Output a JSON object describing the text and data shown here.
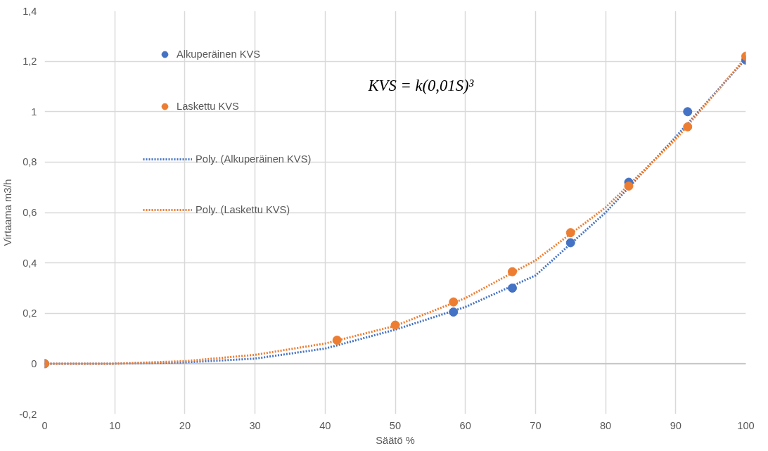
{
  "chart_data": {
    "type": "scatter",
    "xlabel": "Säätö %",
    "ylabel": "Virtaama m3/h",
    "annotations": [
      "KVS = k(0,01S)³"
    ],
    "xlim": [
      0,
      100
    ],
    "xticks": [
      0,
      10,
      20,
      30,
      40,
      50,
      60,
      70,
      80,
      90,
      100
    ],
    "ylim": [
      -0.2,
      1.4
    ],
    "yticks": [
      {
        "value": -0.2,
        "label": "-0,2"
      },
      0,
      {
        "value": 0.2,
        "label": "0,2"
      },
      {
        "value": 0.4,
        "label": "0,4"
      },
      {
        "value": 0.6,
        "label": "0,6"
      },
      {
        "value": 0.8,
        "label": "0,8"
      },
      1,
      {
        "value": 1.2,
        "label": "1,2"
      },
      {
        "value": 1.4,
        "label": "1,4"
      }
    ],
    "grid": true,
    "legend": "top left",
    "marker": "circle",
    "series": [
      {
        "name": "Alkuperäinen KVS",
        "color": "#4472c4",
        "x": [
          0,
          50,
          58.3,
          66.7,
          75,
          83.3,
          91.7,
          100
        ],
        "values": [
          0,
          null,
          0.205,
          0.3,
          0.48,
          0.72,
          1.0,
          1.205
        ]
      },
      {
        "name": "Laskettu KVS",
        "color": "#ed7d31",
        "x": [
          0,
          41.7,
          50,
          58.3,
          66.7,
          75,
          83.3,
          91.7,
          100
        ],
        "values": [
          0,
          0.093,
          0.153,
          0.245,
          0.365,
          0.52,
          0.705,
          0.94,
          1.22
        ]
      },
      {
        "name": "Poly. (Alkuperäinen KVS)",
        "type": "line",
        "line_style": "dotted",
        "marker": "none",
        "color": "#4472c4",
        "x": [
          0,
          10,
          20,
          30,
          40,
          50,
          60,
          70,
          80,
          90,
          100
        ],
        "values": [
          0,
          0,
          0.005,
          0.02,
          0.06,
          0.135,
          0.225,
          0.35,
          0.6,
          0.9,
          1.21
        ]
      },
      {
        "name": "Poly. (Laskettu KVS)",
        "type": "line",
        "line_style": "dotted",
        "marker": "none",
        "color": "#ed7d31",
        "x": [
          0,
          10,
          20,
          30,
          40,
          50,
          60,
          70,
          80,
          90,
          100
        ],
        "values": [
          0,
          0,
          0.01,
          0.035,
          0.08,
          0.15,
          0.26,
          0.41,
          0.62,
          0.89,
          1.215
        ]
      }
    ]
  }
}
